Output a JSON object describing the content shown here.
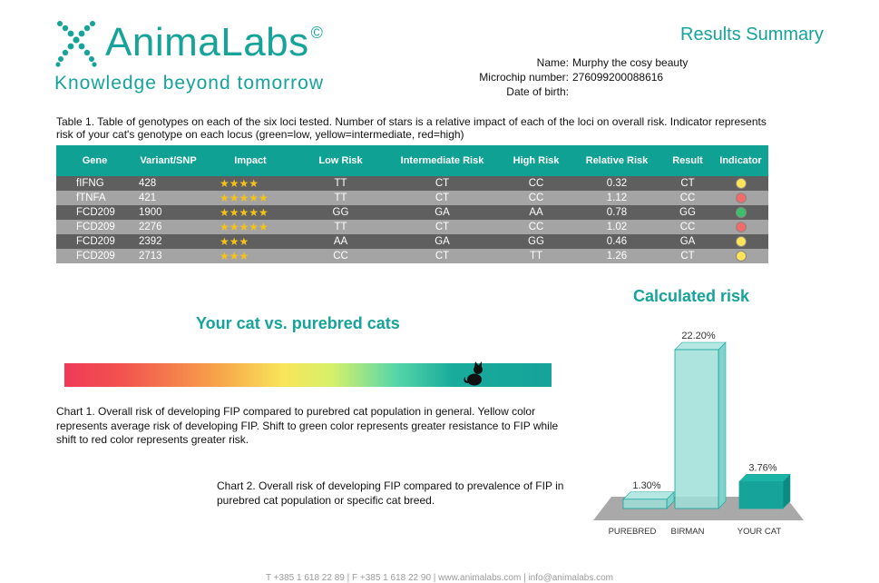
{
  "header": {
    "brand": "AnimaLabs",
    "brand_mark": "©",
    "tagline": "Knowledge beyond tomorrow",
    "title": "Results Summary",
    "accent_color": "#16a39a"
  },
  "pet_info": {
    "name_label": "Name:",
    "name_value": "Murphy the cosy beauty",
    "microchip_label": "Microchip number:",
    "microchip_value": "276099200088616",
    "dob_label": "Date of birth:",
    "dob_value": ""
  },
  "table": {
    "caption": "Table 1. Table of genotypes on each of the six loci tested. Number of stars is a relative impact of each of the loci on overall risk. Indicator represents risk of your cat's genotype on each locus (green=low, yellow=intermediate, red=high)",
    "headers": [
      "Gene",
      "Variant/SNP",
      "Impact",
      "Low Risk",
      "Intermediate Risk",
      "High Risk",
      "Relative Risk",
      "Result",
      "Indicator"
    ],
    "rows": [
      {
        "gene": "fIFNG",
        "variant": "428",
        "impact": "★★★★",
        "low": "TT",
        "intermediate": "CT",
        "high": "CC",
        "relative": "0.32",
        "result": "CT",
        "indicator": "yellow"
      },
      {
        "gene": "fTNFA",
        "variant": "421",
        "impact": "★★★★★",
        "low": "TT",
        "intermediate": "CT",
        "high": "CC",
        "relative": "1.12",
        "result": "CC",
        "indicator": "red"
      },
      {
        "gene": "FCD209",
        "variant": "1900",
        "impact": "★★★★★",
        "low": "GG",
        "intermediate": "GA",
        "high": "AA",
        "relative": "0.78",
        "result": "GG",
        "indicator": "green"
      },
      {
        "gene": "FCD209",
        "variant": "2276",
        "impact": "★★★★★",
        "low": "TT",
        "intermediate": "CT",
        "high": "CC",
        "relative": "1.02",
        "result": "CC",
        "indicator": "red"
      },
      {
        "gene": "FCD209",
        "variant": "2392",
        "impact": "★★★",
        "low": "AA",
        "intermediate": "GA",
        "high": "GG",
        "relative": "0.46",
        "result": "GA",
        "indicator": "yellow"
      },
      {
        "gene": "FCD209",
        "variant": "2713",
        "impact": "★★★",
        "low": "CC",
        "intermediate": "CT",
        "high": "TT",
        "relative": "1.26",
        "result": "CT",
        "indicator": "yellow"
      }
    ]
  },
  "gauge": {
    "title": "Your cat vs. purebred cats",
    "cat_position_fraction": 0.84,
    "caption": "Chart 1. Overall risk of developing FIP compared to purebred cat population in general. Yellow color represents average risk of developing FIP. Shift to green color represents greater resistance to FIP while shift to red color represents greater risk.",
    "icon": "cat-icon"
  },
  "chart2_caption": "Chart 2. Overall risk of developing FIP compared to  prevalence of FIP in purebred cat population or specific cat breed.",
  "chart_data": {
    "type": "bar",
    "title": "Calculated risk",
    "categories": [
      "PUREBRED",
      "BIRMAN",
      "YOUR CAT"
    ],
    "values": [
      1.3,
      22.2,
      3.76
    ],
    "value_labels": [
      "1.30%",
      "22.20%",
      "3.76%"
    ],
    "xlabel": "",
    "ylabel": "",
    "ylim": [
      0,
      22.2
    ],
    "grid": false,
    "bar_color": "#16a39a"
  },
  "footer": "T +385 1 618 22 89  |  F +385 1 618 22 90  |  www.animalabs.com  |  info@animalabs.com"
}
